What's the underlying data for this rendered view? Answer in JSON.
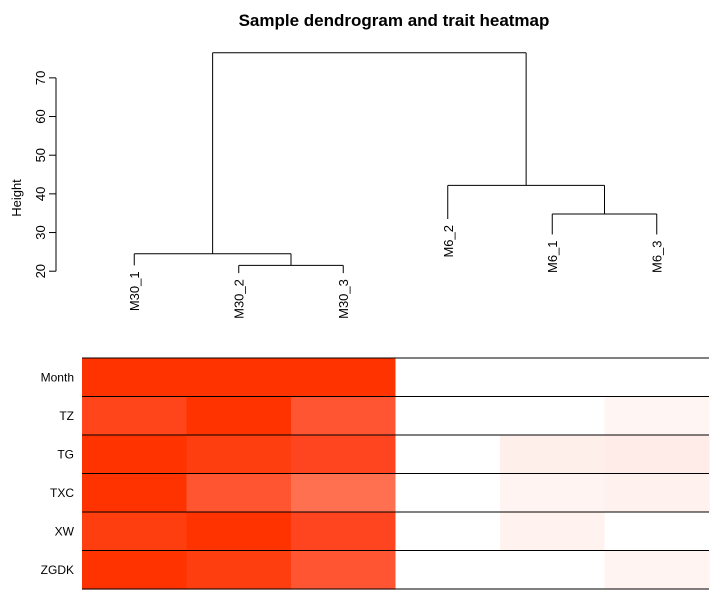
{
  "chart_data": {
    "type": "heatmap",
    "title": "Sample dendrogram and trait heatmap",
    "dendrogram": {
      "ylabel": "Height",
      "yticks": [
        20,
        30,
        40,
        50,
        60,
        70
      ],
      "ylim": [
        18.5,
        78.5
      ],
      "samples": [
        "M30_1",
        "M30_2",
        "M30_3",
        "M6_2",
        "M6_1",
        "M6_3"
      ],
      "leaf_heights": [
        21.5,
        19.5,
        19.5,
        33.5,
        29.5,
        29.5
      ],
      "merges": [
        {
          "left": "M30_2",
          "right": "M30_3",
          "height": 21.5
        },
        {
          "left": "M30_1",
          "right": "M30_2+M30_3",
          "height": 24.5
        },
        {
          "left": "M6_1",
          "right": "M6_3",
          "height": 34.8
        },
        {
          "left": "M6_2",
          "right": "M6_1+M6_3",
          "height": 42.2
        },
        {
          "left": "M30 group",
          "right": "M6 group",
          "height": 76.5
        }
      ]
    },
    "heatmap": {
      "traits": [
        "Month",
        "TZ",
        "TG",
        "TXC",
        "XW",
        "ZGDK"
      ],
      "samples": [
        "M30_1",
        "M30_2",
        "M30_3",
        "M6_2",
        "M6_1",
        "M6_3"
      ],
      "colors": [
        [
          "#ff3300",
          "#ff3300",
          "#ff3300",
          "#ffffff",
          "#ffffff",
          "#ffffff"
        ],
        [
          "#ff4519",
          "#ff3300",
          "#ff5533",
          "#ffffff",
          "#ffffff",
          "#fff6f4"
        ],
        [
          "#ff3300",
          "#ff3e10",
          "#ff4520",
          "#ffffff",
          "#ffefeb",
          "#ffece8"
        ],
        [
          "#ff3300",
          "#ff5530",
          "#ff7050",
          "#ffffff",
          "#fff4f2",
          "#fff1ee"
        ],
        [
          "#ff3e10",
          "#ff3300",
          "#ff4520",
          "#ffffff",
          "#fff2ef",
          "#ffffff"
        ],
        [
          "#ff3300",
          "#ff3e10",
          "#ff5533",
          "#ffffff",
          "#ffffff",
          "#fff4f2"
        ]
      ]
    }
  }
}
